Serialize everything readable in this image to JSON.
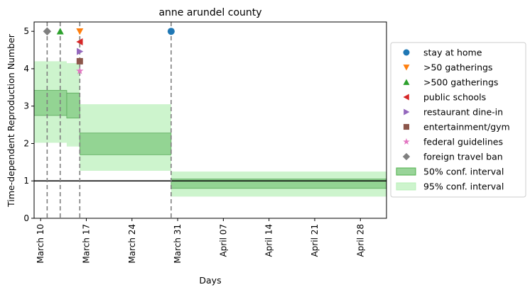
{
  "chart_data": {
    "type": "area",
    "title": "anne arundel county",
    "xlabel": "Days",
    "ylabel": "Time-dependent Reproduction Number",
    "xlim": [
      "2020-03-09",
      "2020-05-02"
    ],
    "ylim": [
      0,
      5.25
    ],
    "x_ticks": [
      "March 10",
      "March 17",
      "March 24",
      "March 31",
      "April 07",
      "April 14",
      "April 21",
      "April 28"
    ],
    "x_tick_dates": [
      "2020-03-10",
      "2020-03-17",
      "2020-03-24",
      "2020-03-31",
      "2020-04-07",
      "2020-04-14",
      "2020-04-21",
      "2020-04-28"
    ],
    "y_ticks": [
      0,
      1,
      2,
      3,
      4,
      5
    ],
    "reference_line_y": 1,
    "grid": false,
    "legend_position": "right",
    "intervals": [
      {
        "start": "2020-03-09",
        "end": "2020-03-14",
        "ci50": [
          2.75,
          3.42
        ],
        "ci95": [
          2.02,
          4.2
        ]
      },
      {
        "start": "2020-03-14",
        "end": "2020-03-16",
        "ci50": [
          2.68,
          3.35
        ],
        "ci95": [
          1.92,
          4.15
        ]
      },
      {
        "start": "2020-03-16",
        "end": "2020-03-30",
        "ci50": [
          1.7,
          2.28
        ],
        "ci95": [
          1.27,
          3.05
        ]
      },
      {
        "start": "2020-03-30",
        "end": "2020-05-02",
        "ci50": [
          0.8,
          1.05
        ],
        "ci95": [
          0.58,
          1.25
        ]
      }
    ],
    "interventions": [
      {
        "name": "stay at home",
        "date": "2020-03-30",
        "y": 5.0,
        "marker": "circle",
        "color": "#1f77b4"
      },
      {
        "name": ">50 gatherings",
        "date": "2020-03-16",
        "y": 5.0,
        "marker": "triangle-down",
        "color": "#ff7f0e"
      },
      {
        "name": ">500 gatherings",
        "date": "2020-03-13",
        "y": 5.0,
        "marker": "triangle-up",
        "color": "#2ca02c"
      },
      {
        "name": "public schools",
        "date": "2020-03-16",
        "y": 4.72,
        "marker": "triangle-left",
        "color": "#d62728"
      },
      {
        "name": "restaurant dine-in",
        "date": "2020-03-16",
        "y": 4.46,
        "marker": "triangle-right",
        "color": "#9467bd"
      },
      {
        "name": "entertainment/gym",
        "date": "2020-03-16",
        "y": 4.2,
        "marker": "square",
        "color": "#8c564b"
      },
      {
        "name": "federal guidelines",
        "date": "2020-03-16",
        "y": 3.94,
        "marker": "star",
        "color": "#e377c2"
      },
      {
        "name": "foreign travel ban",
        "date": "2020-03-11",
        "y": 5.0,
        "marker": "diamond",
        "color": "#7f7f7f"
      }
    ],
    "legend": [
      {
        "label": "stay at home",
        "kind": "marker",
        "marker": "circle",
        "color": "#1f77b4"
      },
      {
        "label": ">50 gatherings",
        "kind": "marker",
        "marker": "triangle-down",
        "color": "#ff7f0e"
      },
      {
        "label": ">500 gatherings",
        "kind": "marker",
        "marker": "triangle-up",
        "color": "#2ca02c"
      },
      {
        "label": "public schools",
        "kind": "marker",
        "marker": "triangle-left",
        "color": "#d62728"
      },
      {
        "label": "restaurant dine-in",
        "kind": "marker",
        "marker": "triangle-right",
        "color": "#9467bd"
      },
      {
        "label": "entertainment/gym",
        "kind": "marker",
        "marker": "square",
        "color": "#8c564b"
      },
      {
        "label": "federal guidelines",
        "kind": "marker",
        "marker": "star",
        "color": "#e377c2"
      },
      {
        "label": "foreign travel ban",
        "kind": "marker",
        "marker": "diamond",
        "color": "#7f7f7f"
      },
      {
        "label": "50% conf. interval",
        "kind": "patch",
        "fill": "#7fc97f",
        "stroke": "#4daf4a",
        "opacity": 0.8
      },
      {
        "label": "95% conf. interval",
        "kind": "patch",
        "fill": "#b8f0b8",
        "stroke": "#b8f0b8",
        "opacity": 0.7
      }
    ]
  }
}
